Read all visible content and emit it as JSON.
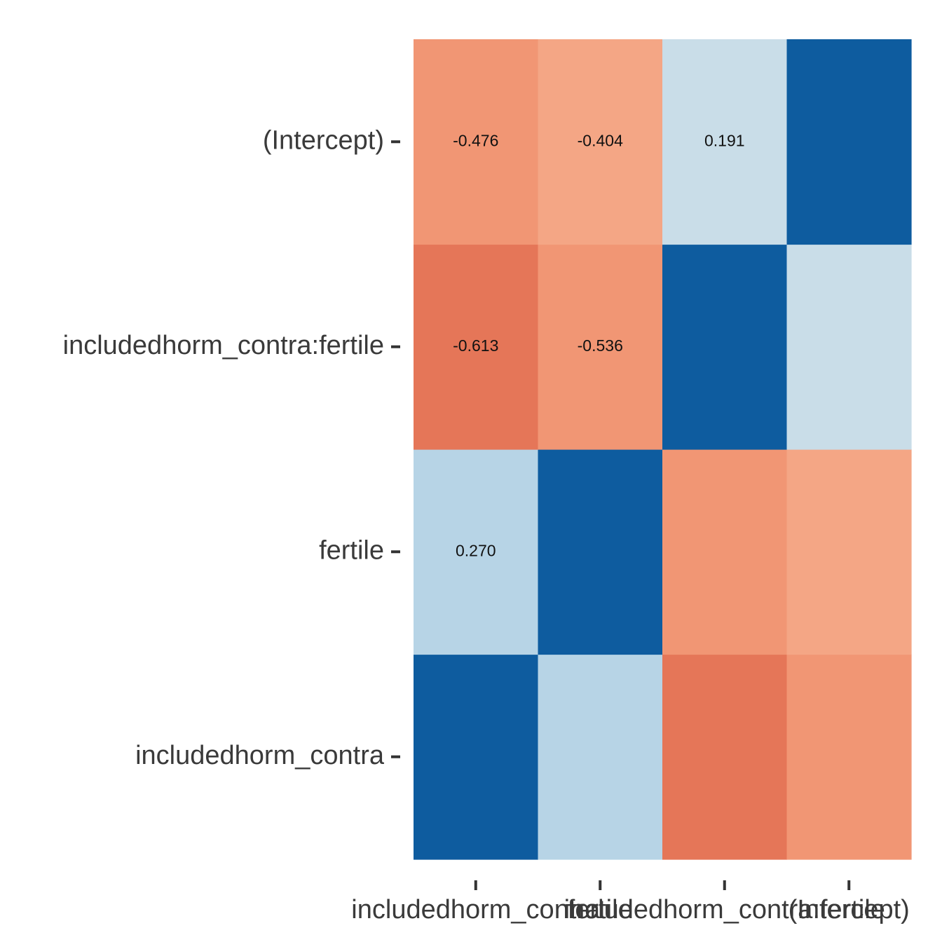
{
  "chart_data": {
    "type": "heatmap",
    "title": "",
    "xlabel": "",
    "ylabel": "",
    "x_categories": [
      "includedhorm_contra",
      "fertile",
      "includedhorm_contra:fertile",
      "(Intercept)"
    ],
    "y_categories": [
      "includedhorm_contra",
      "fertile",
      "includedhorm_contra:fertile",
      "(Intercept)"
    ],
    "matrix": [
      [
        1.0,
        0.27,
        -0.613,
        -0.476
      ],
      [
        0.27,
        1.0,
        -0.536,
        -0.404
      ],
      [
        -0.613,
        -0.536,
        1.0,
        0.191
      ],
      [
        -0.476,
        -0.404,
        0.191,
        1.0
      ]
    ],
    "labels": [
      [
        "",
        "",
        "",
        ""
      ],
      [
        "0.270",
        "",
        "",
        ""
      ],
      [
        "-0.613",
        "-0.536",
        "",
        ""
      ],
      [
        "-0.476",
        "-0.404",
        "0.191",
        ""
      ]
    ],
    "colors": {
      "diagonal": "#0e5c9f",
      "positive_low": "#c9dde8",
      "positive_mid": "#b7d4e6",
      "negative_weak": "#f4a685",
      "negative_mid": "#f19674",
      "negative_strong": "#e57658"
    },
    "legend": false,
    "grid": false
  }
}
